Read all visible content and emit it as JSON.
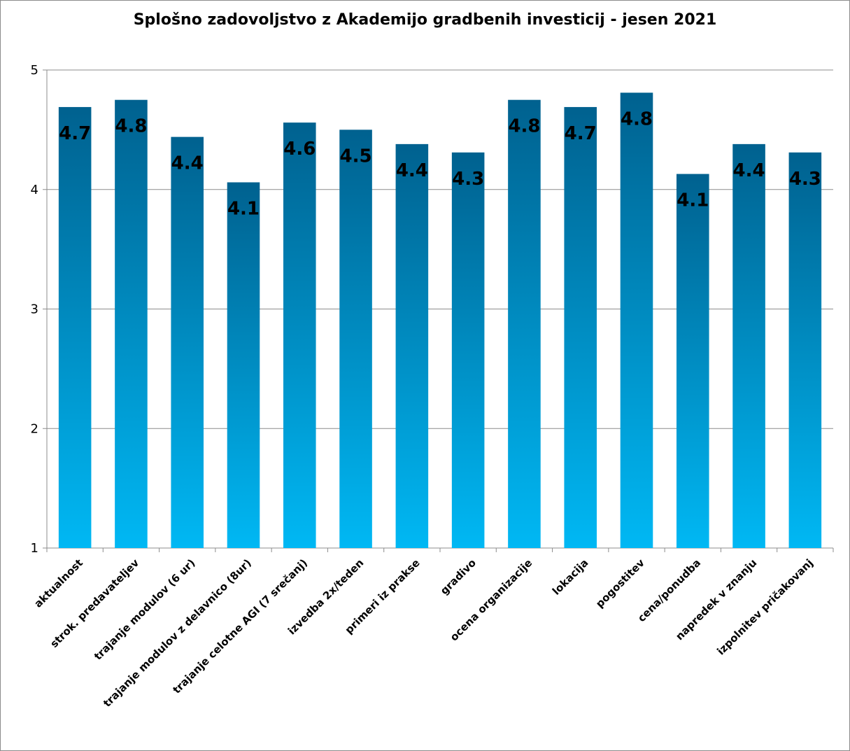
{
  "chart_data": {
    "type": "bar",
    "title": "Splošno zadovoljstvo z Akademijo gradbenih investicij - jesen 2021",
    "categories": [
      "aktualnost",
      "strok. predavateljev",
      "trajanje modulov (6 ur)",
      "trajanje modulov  z delavnico (8ur)",
      "trajanje celotne AGI (7 srečanj)",
      "izvedba 2x/teden",
      "primeri iz prakse",
      "gradivo",
      "ocena organizacije",
      "lokacija",
      "pogostitev",
      "cena/ponudba",
      "napredek v znanju",
      "izpolnitev pričakovanj"
    ],
    "values": [
      4.69,
      4.75,
      4.44,
      4.06,
      4.56,
      4.5,
      4.38,
      4.31,
      4.75,
      4.69,
      4.81,
      4.13,
      4.38,
      4.31
    ],
    "data_labels": [
      "4.7",
      "4.8",
      "4.4",
      "4.1",
      "4.6",
      "4.5",
      "4.4",
      "4.3",
      "4.8",
      "4.7",
      "4.8",
      "4.1",
      "4.4",
      "4.3"
    ],
    "ylim": [
      1,
      5
    ],
    "yticks": [
      "1",
      "2",
      "3",
      "4",
      "5"
    ],
    "grid": true,
    "legend": "none",
    "bar_color_top": "#00618f",
    "bar_color_bottom": "#00b8f4"
  }
}
